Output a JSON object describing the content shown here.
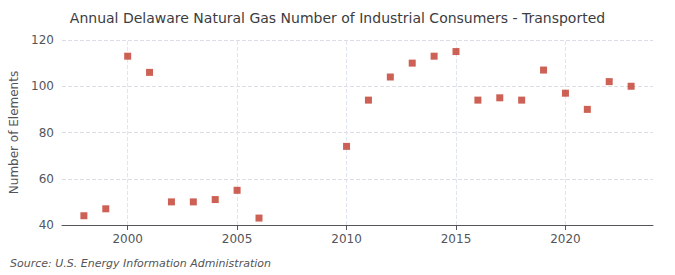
{
  "chart_data": {
    "type": "scatter",
    "title": "Annual Delaware Natural Gas Number of Industrial Consumers - Transported",
    "ylabel": "Number of Elements",
    "source": "Source: U.S. Energy Information Administration",
    "x": [
      1998,
      1999,
      2000,
      2001,
      2002,
      2003,
      2004,
      2005,
      2006,
      2010,
      2011,
      2012,
      2013,
      2014,
      2015,
      2016,
      2017,
      2018,
      2019,
      2020,
      2021,
      2022,
      2023
    ],
    "values": [
      44,
      47,
      113,
      106,
      50,
      50,
      51,
      55,
      43,
      74,
      94,
      104,
      110,
      113,
      115,
      94,
      95,
      94,
      107,
      97,
      90,
      102,
      100
    ],
    "color": "#c0392b",
    "marker": "square",
    "xlim": [
      1997,
      2024
    ],
    "xticks": [
      2000,
      2005,
      2010,
      2015,
      2020
    ],
    "ylim": [
      40,
      120
    ],
    "yticks": [
      40,
      60,
      80,
      100,
      120
    ],
    "grid": true
  }
}
